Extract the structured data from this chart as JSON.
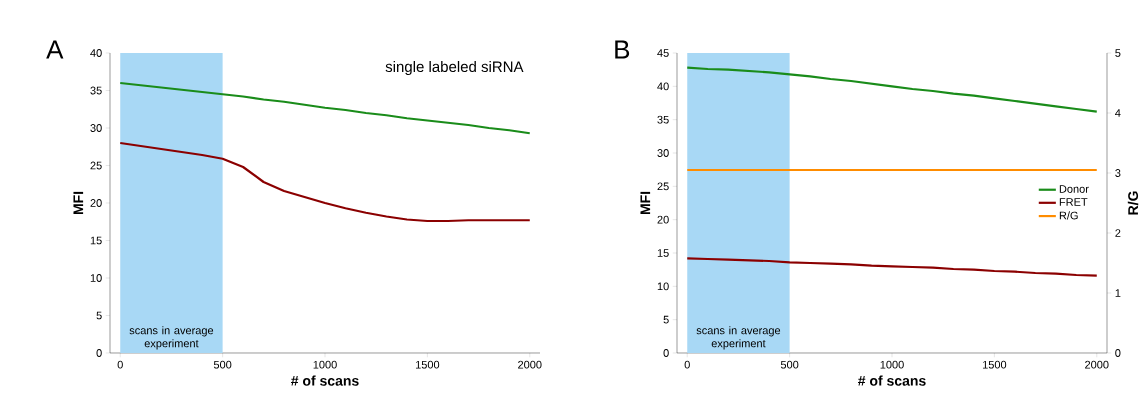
{
  "chart_data": [
    {
      "type": "line",
      "title": "single labeled siRNA",
      "xlabel": "# of scans",
      "ylabel": "MFI",
      "annotations": [
        "A"
      ],
      "x": [
        0,
        100,
        200,
        300,
        400,
        500,
        600,
        700,
        800,
        900,
        1000,
        1100,
        1200,
        1300,
        1400,
        1500,
        1600,
        1700,
        1800,
        1900,
        2000
      ],
      "series": [
        {
          "color": "#1a8c1a",
          "values": [
            36.0,
            35.7,
            35.4,
            35.1,
            34.8,
            34.5,
            34.2,
            33.8,
            33.5,
            33.1,
            32.7,
            32.4,
            32.0,
            31.7,
            31.3,
            31.0,
            30.7,
            30.4,
            30.0,
            29.7,
            29.3
          ]
        },
        {
          "color": "#8b0000",
          "values": [
            28.0,
            27.6,
            27.2,
            26.8,
            26.4,
            25.9,
            24.8,
            22.8,
            21.6,
            20.8,
            20.0,
            19.3,
            18.7,
            18.2,
            17.8,
            17.6,
            17.6,
            17.7,
            17.7,
            17.7,
            17.7
          ]
        }
      ],
      "xlim": [
        -50,
        2050
      ],
      "xticks": [
        0,
        500,
        1000,
        1500,
        2000
      ],
      "ylim": [
        0,
        40
      ],
      "yticks": [
        0,
        5,
        10,
        15,
        20,
        25,
        30,
        35,
        40
      ],
      "bands": [
        {
          "axis": "x",
          "from": 0,
          "to": 500,
          "label": "scans in average experiment",
          "color": "#a8d8f5"
        }
      ],
      "legend": false,
      "grid": false
    },
    {
      "type": "line",
      "xlabel": "# of scans",
      "ylabel": "MFI",
      "y2label": "R/G",
      "annotations": [
        "B"
      ],
      "x": [
        0,
        100,
        200,
        300,
        400,
        500,
        600,
        700,
        800,
        900,
        1000,
        1100,
        1200,
        1300,
        1400,
        1500,
        1600,
        1700,
        1800,
        1900,
        2000
      ],
      "series": [
        {
          "name": "Donor",
          "color": "#1a8c1a",
          "values": [
            42.8,
            42.6,
            42.5,
            42.3,
            42.1,
            41.8,
            41.5,
            41.1,
            40.8,
            40.4,
            40.0,
            39.6,
            39.3,
            38.9,
            38.6,
            38.2,
            37.8,
            37.4,
            37.0,
            36.6,
            36.2
          ]
        },
        {
          "name": "FRET",
          "color": "#8b0000",
          "values": [
            14.2,
            14.1,
            14.0,
            13.9,
            13.8,
            13.6,
            13.5,
            13.4,
            13.3,
            13.1,
            13.0,
            12.9,
            12.8,
            12.6,
            12.5,
            12.3,
            12.2,
            12.0,
            11.9,
            11.7,
            11.6
          ]
        },
        {
          "name": "R/G",
          "color": "#ff8c00",
          "axis": "y2",
          "values": [
            3.05,
            3.05,
            3.05,
            3.05,
            3.05,
            3.05,
            3.05,
            3.05,
            3.05,
            3.05,
            3.05,
            3.05,
            3.05,
            3.05,
            3.05,
            3.05,
            3.05,
            3.05,
            3.05,
            3.05,
            3.05
          ]
        }
      ],
      "xlim": [
        -50,
        2050
      ],
      "xticks": [
        0,
        500,
        1000,
        1500,
        2000
      ],
      "ylim": [
        0,
        45
      ],
      "yticks": [
        0,
        5,
        10,
        15,
        20,
        25,
        30,
        35,
        40,
        45
      ],
      "y2lim": [
        0,
        5
      ],
      "y2ticks": [
        0,
        1,
        2,
        3,
        4,
        5
      ],
      "bands": [
        {
          "axis": "x",
          "from": 0,
          "to": 500,
          "label": "scans in average experiment",
          "color": "#a8d8f5"
        }
      ],
      "legend": "right",
      "grid": false
    }
  ]
}
